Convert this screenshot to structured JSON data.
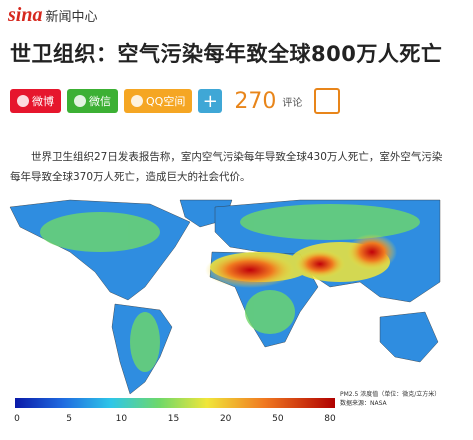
{
  "logo": {
    "brand": "sina",
    "section": "新闻中心"
  },
  "header": {
    "title": "世卫组织：空气污染每年致全球800万人死亡"
  },
  "share": {
    "buttons": [
      "微博",
      "微信",
      "QQ空间"
    ],
    "comment_count": "270",
    "comment_label": "评论"
  },
  "article": {
    "paragraph": "世界卫生组织27日发表报告称，室内空气污染每年导致全球430万人死亡，室外空气污染每年导致全球370万人死亡，造成巨大的社会代价。"
  },
  "map": {
    "legend_title": "PM2.5 浓度值（单位：微克/立方米）",
    "source": "数据来源：NASA",
    "colorbar_ticks": [
      0,
      5,
      10,
      15,
      20,
      50,
      80
    ]
  }
}
